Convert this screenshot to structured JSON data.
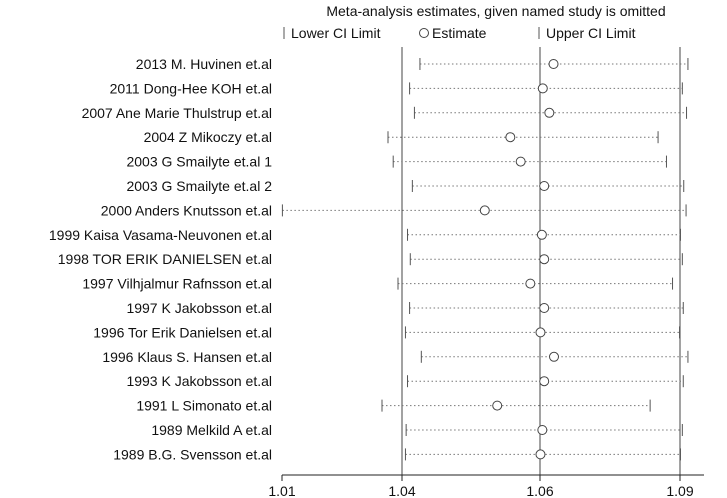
{
  "chart_data": {
    "type": "forest",
    "title": "Meta-analysis estimates, given named study is omitted",
    "legend": {
      "lower": "Lower CI Limit",
      "estimate": "Estimate",
      "upper": "Upper CI Limit"
    },
    "x_ticks": [
      "1.01",
      "1.04",
      "1.06",
      "1.09"
    ],
    "reference_lines": [
      1.04,
      1.06,
      1.09
    ],
    "studies": [
      {
        "label": "2013 M. Huvinen et.al",
        "lower": 1.0426,
        "estimate": 1.0629,
        "upper": 1.0917
      },
      {
        "label": "2011 Dong-Hee KOH et.al",
        "lower": 1.0411,
        "estimate": 1.0606,
        "upper": 1.0905
      },
      {
        "label": "2007 Ane Marie Thulstrup et.al",
        "lower": 1.0418,
        "estimate": 1.062,
        "upper": 1.0914
      },
      {
        "label": "2004 Z Mikoczy et.al",
        "lower": 1.0365,
        "estimate": 1.0557,
        "upper": 1.0853
      },
      {
        "label": "2003 G Smailyte et.al 1",
        "lower": 1.0378,
        "estimate": 1.0572,
        "upper": 1.0871
      },
      {
        "label": "2003 G Smailyte et.al 2",
        "lower": 1.0415,
        "estimate": 1.0609,
        "upper": 1.0908
      },
      {
        "label": "2000 Anders Knutsson et.al",
        "lower": 1.0101,
        "estimate": 1.052,
        "upper": 1.0913
      },
      {
        "label": "1999 Kaisa Vasama-Neuvonen et.al",
        "lower": 1.0408,
        "estimate": 1.0604,
        "upper": 1.0901
      },
      {
        "label": "1998 TOR ERIK DANIELSEN et.al",
        "lower": 1.0412,
        "estimate": 1.0609,
        "upper": 1.0905
      },
      {
        "label": "1997 Vilhjalmur Rafnsson et.al",
        "lower": 1.039,
        "estimate": 1.0586,
        "upper": 1.0884
      },
      {
        "label": "1997 K Jakobsson et.al",
        "lower": 1.0411,
        "estimate": 1.0609,
        "upper": 1.0907
      },
      {
        "label": "1996 Tor Erik Danielsen et.al",
        "lower": 1.0405,
        "estimate": 1.0601,
        "upper": 1.0899
      },
      {
        "label": "1996 Klaus S. Hansen et.al",
        "lower": 1.0428,
        "estimate": 1.063,
        "upper": 1.0917
      },
      {
        "label": "1993 K Jakobsson et.al",
        "lower": 1.0408,
        "estimate": 1.0609,
        "upper": 1.0907
      },
      {
        "label": "1991 L Simonato et.al",
        "lower": 1.035,
        "estimate": 1.0538,
        "upper": 1.0836
      },
      {
        "label": "1989 Melkild A et.al",
        "lower": 1.0406,
        "estimate": 1.0605,
        "upper": 1.0905
      },
      {
        "label": "1989 B.G. Svensson et.al",
        "lower": 1.0405,
        "estimate": 1.0601,
        "upper": 1.0901
      }
    ]
  }
}
